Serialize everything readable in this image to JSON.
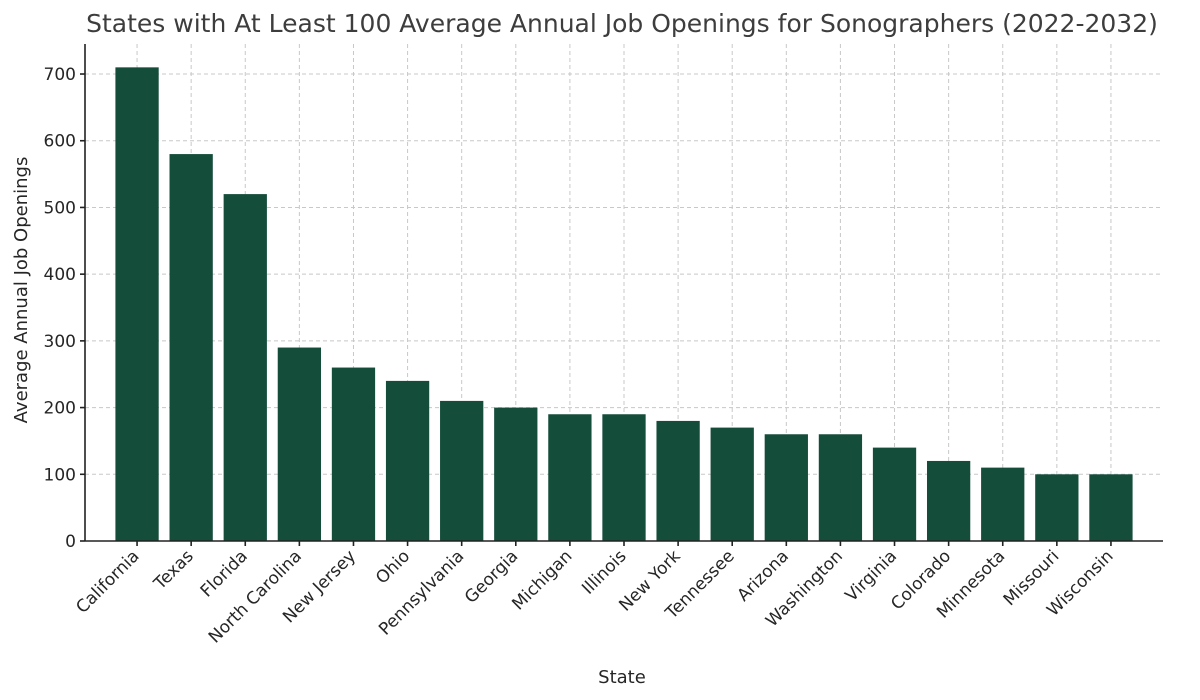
{
  "chart_data": {
    "type": "bar",
    "title": "States with At Least 100 Average Annual Job Openings for Sonographers (2022-2032)",
    "xlabel": "State",
    "ylabel": "Average Annual Job Openings",
    "categories": [
      "California",
      "Texas",
      "Florida",
      "North Carolina",
      "New Jersey",
      "Ohio",
      "Pennsylvania",
      "Georgia",
      "Michigan",
      "Illinois",
      "New York",
      "Tennessee",
      "Arizona",
      "Washington",
      "Virginia",
      "Colorado",
      "Minnesota",
      "Missouri",
      "Wisconsin"
    ],
    "values": [
      710,
      580,
      520,
      290,
      260,
      240,
      210,
      200,
      190,
      190,
      180,
      170,
      160,
      160,
      140,
      120,
      110,
      100,
      100
    ],
    "ylim": [
      0,
      745
    ],
    "yticks": [
      0,
      100,
      200,
      300,
      400,
      500,
      600,
      700
    ],
    "grid": true,
    "bar_color": "#154d3b"
  }
}
